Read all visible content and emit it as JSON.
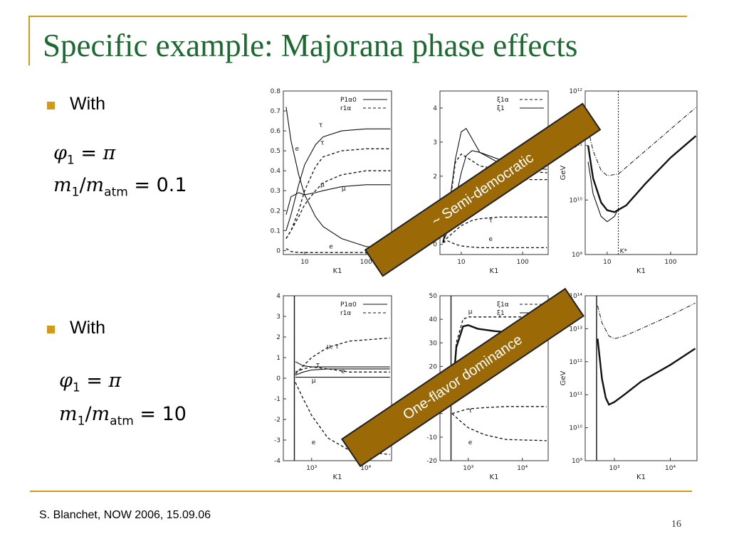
{
  "slide": {
    "title": "Specific example: Majorana phase effects",
    "bullets": [
      {
        "label": "With",
        "eq_lhs1": "1",
        "eq_rhs1": "π",
        "eq_ratio_sub": "atm",
        "eq_value": "0.1"
      },
      {
        "label": "With",
        "eq_lhs1": "1",
        "eq_rhs1": "π",
        "eq_ratio_sub": "atm",
        "eq_value": "10"
      }
    ],
    "eq_symbols": {
      "phi": "φ",
      "m": "m",
      "slash": "/",
      "equals": "="
    },
    "footer": "S. Blanchet, NOW 2006, 15.09.06",
    "page_number": "16",
    "banners": [
      "~ Semi-democratic",
      "One-flavor dominance"
    ],
    "accent_color": "#d19a1c",
    "title_color": "#1c6a32",
    "banner_color": "#9b6a06"
  },
  "chart_data": [
    {
      "type": "line",
      "xlabel": "K1",
      "xscale": "log",
      "xlim": [
        4.5,
        260
      ],
      "ylim": [
        -0.02,
        0.8
      ],
      "xticks": [
        {
          "v": 10,
          "l": "10"
        },
        {
          "v": 100,
          "l": "100"
        }
      ],
      "yticks": [
        {
          "v": 0,
          "l": "0"
        },
        {
          "v": 0.1,
          "l": "0.1"
        },
        {
          "v": 0.2,
          "l": "0.2"
        },
        {
          "v": 0.3,
          "l": "0.3"
        },
        {
          "v": 0.4,
          "l": "0.4"
        },
        {
          "v": 0.5,
          "l": "0.5"
        },
        {
          "v": 0.6,
          "l": "0.6"
        },
        {
          "v": 0.7,
          "l": "0.7"
        },
        {
          "v": 0.8,
          "l": "0.8"
        }
      ],
      "legend": [
        "P1α0",
        "r1α"
      ],
      "series": [
        {
          "style": "solid",
          "x": [
            5,
            6,
            8,
            10,
            15,
            20,
            40,
            100,
            250
          ],
          "y": [
            0.72,
            0.55,
            0.38,
            0.28,
            0.17,
            0.12,
            0.06,
            0.02,
            0.01
          ]
        },
        {
          "style": "solid",
          "x": [
            5,
            6,
            8,
            10,
            15,
            20,
            40,
            100,
            250
          ],
          "y": [
            0.1,
            0.18,
            0.33,
            0.43,
            0.53,
            0.57,
            0.6,
            0.61,
            0.61
          ]
        },
        {
          "style": "solid",
          "x": [
            5,
            6,
            8,
            10,
            15,
            20,
            40,
            100,
            250
          ],
          "y": [
            0.18,
            0.27,
            0.29,
            0.28,
            0.29,
            0.3,
            0.32,
            0.33,
            0.33
          ]
        },
        {
          "style": "dashed",
          "x": [
            5,
            6,
            8,
            10,
            15,
            20,
            40,
            100,
            250
          ],
          "y": [
            0.06,
            0.1,
            0.2,
            0.3,
            0.42,
            0.47,
            0.5,
            0.51,
            0.51
          ]
        },
        {
          "style": "dashed",
          "x": [
            5,
            6,
            8,
            10,
            15,
            20,
            40,
            100,
            250
          ],
          "y": [
            0.06,
            0.1,
            0.17,
            0.23,
            0.3,
            0.34,
            0.38,
            0.4,
            0.4
          ]
        },
        {
          "style": "dashed",
          "x": [
            5,
            6,
            8,
            10,
            15,
            20,
            40,
            100,
            250
          ],
          "y": [
            0.01,
            -0.005,
            -0.01,
            -0.01,
            -0.01,
            -0.01,
            -0.01,
            -0.01,
            -0.01
          ]
        }
      ],
      "annotations": [
        {
          "t": "e",
          "x": 7,
          "y": 0.5
        },
        {
          "t": "τ",
          "x": 17,
          "y": 0.62
        },
        {
          "t": "τ",
          "x": 18,
          "y": 0.53
        },
        {
          "t": "μ",
          "x": 18,
          "y": 0.32
        },
        {
          "t": "μ",
          "x": 40,
          "y": 0.3
        },
        {
          "t": "e",
          "x": 25,
          "y": 0.01
        }
      ]
    },
    {
      "type": "line",
      "xlabel": "K1",
      "xscale": "log",
      "xlim": [
        4.5,
        260
      ],
      "ylim": [
        -0.3,
        4.5
      ],
      "xticks": [
        {
          "v": 10,
          "l": "10"
        },
        {
          "v": 100,
          "l": "100"
        }
      ],
      "yticks": [
        {
          "v": 0,
          "l": "0"
        },
        {
          "v": 1,
          "l": "1"
        },
        {
          "v": 2,
          "l": "2"
        },
        {
          "v": 3,
          "l": "3"
        },
        {
          "v": 4,
          "l": "4"
        }
      ],
      "legend": [
        "ξ1α",
        "ξ1"
      ],
      "series": [
        {
          "style": "solid",
          "x": [
            5,
            6,
            8,
            10,
            12,
            15,
            20,
            40,
            100,
            250
          ],
          "y": [
            0.05,
            0.8,
            2.5,
            3.3,
            3.4,
            3.1,
            2.7,
            2.4,
            2.25,
            2.2
          ]
        },
        {
          "style": "solid",
          "x": [
            5,
            6,
            8,
            10,
            12,
            15,
            20,
            40,
            100,
            250
          ],
          "y": [
            0.05,
            0.4,
            1.3,
            2.1,
            2.6,
            2.75,
            2.7,
            2.5,
            2.45,
            2.4
          ]
        },
        {
          "style": "dashed",
          "x": [
            5,
            6,
            8,
            10,
            15,
            20,
            40,
            100,
            250
          ],
          "y": [
            0.05,
            0.7,
            2.4,
            2.65,
            2.45,
            2.3,
            2.2,
            2.15,
            2.1
          ]
        },
        {
          "style": "dashed",
          "x": [
            5,
            6,
            8,
            10,
            15,
            20,
            40,
            100,
            250
          ],
          "y": [
            0.05,
            0.4,
            1.0,
            1.2,
            1.55,
            1.7,
            1.85,
            1.9,
            1.9
          ]
        },
        {
          "style": "dashed",
          "x": [
            5,
            6,
            8,
            10,
            15,
            20,
            40,
            100,
            250
          ],
          "y": [
            0.05,
            0.2,
            0.4,
            0.55,
            0.7,
            0.75,
            0.8,
            0.8,
            0.8
          ]
        },
        {
          "style": "dashed",
          "x": [
            5,
            6,
            8,
            10,
            15,
            20,
            40,
            100,
            250
          ],
          "y": [
            0.05,
            0.1,
            0.0,
            -0.05,
            -0.08,
            -0.1,
            -0.1,
            -0.1,
            -0.1
          ]
        }
      ],
      "annotations": [
        {
          "t": "τ",
          "x": 28,
          "y": 0.65
        },
        {
          "t": "e",
          "x": 28,
          "y": 0.1
        }
      ]
    },
    {
      "type": "line",
      "xlabel": "K1",
      "ylabel": "GeV",
      "xscale": "log",
      "yscale": "log",
      "xlim": [
        4.5,
        260
      ],
      "ylim": [
        1000000000.0,
        1000000000000.0
      ],
      "xticks": [
        {
          "v": 10,
          "l": "10"
        },
        {
          "v": 100,
          "l": "100"
        }
      ],
      "yticks": [
        {
          "v": 1000000000.0,
          "l": "10⁹"
        },
        {
          "v": 10000000000.0,
          "l": "10¹⁰"
        },
        {
          "v": 100000000000.0,
          "l": "10¹¹"
        },
        {
          "v": 1000000000000.0,
          "l": "10¹²"
        }
      ],
      "vline": {
        "x": 15,
        "label": "K*"
      },
      "series": [
        {
          "style": "dashdot",
          "x": [
            5,
            6,
            8,
            10,
            15,
            20,
            40,
            100,
            250
          ],
          "y": [
            200000000000.0,
            80000000000.0,
            35000000000.0,
            28000000000.0,
            30000000000.0,
            40000000000.0,
            80000000000.0,
            200000000000.0,
            500000000000.0
          ]
        },
        {
          "style": "thick",
          "x": [
            5,
            6,
            8,
            10,
            13,
            20,
            40,
            100,
            250
          ],
          "y": [
            100000000000.0,
            25000000000.0,
            9000000000.0,
            6500000000.0,
            6000000000.0,
            8000000000.0,
            20000000000.0,
            60000000000.0,
            150000000000.0
          ]
        },
        {
          "style": "solid",
          "x": [
            5,
            6,
            8,
            10,
            13,
            15
          ],
          "y": [
            50000000000.0,
            13000000000.0,
            5000000000.0,
            4000000000.0,
            5000000000.0,
            7000000000.0
          ]
        }
      ],
      "annotations": []
    },
    {
      "type": "line",
      "xlabel": "K1",
      "xscale": "log",
      "xlim": [
        300,
        30000
      ],
      "ylim": [
        -4,
        4
      ],
      "xticks": [
        {
          "v": 1000,
          "l": "10³"
        },
        {
          "v": 10000,
          "l": "10⁴"
        }
      ],
      "yticks": [
        {
          "v": -4,
          "l": "-4"
        },
        {
          "v": -3,
          "l": "-3"
        },
        {
          "v": -2,
          "l": "-2"
        },
        {
          "v": -1,
          "l": "-1"
        },
        {
          "v": 0,
          "l": "0"
        },
        {
          "v": 1,
          "l": "1"
        },
        {
          "v": 2,
          "l": "2"
        },
        {
          "v": 3,
          "l": "3"
        },
        {
          "v": 4,
          "l": "4"
        }
      ],
      "legend": [
        "P1α0",
        "r1α"
      ],
      "vline": {
        "x": 480,
        "label": ""
      },
      "series": [
        {
          "style": "solid",
          "x": [
            500,
            700,
            1000,
            2000,
            5000,
            28000
          ],
          "y": [
            0.8,
            0.6,
            0.55,
            0.55,
            0.55,
            0.55
          ]
        },
        {
          "style": "solid",
          "x": [
            500,
            700,
            1000,
            2000,
            5000,
            28000
          ],
          "y": [
            0.15,
            0.3,
            0.4,
            0.45,
            0.45,
            0.45
          ]
        },
        {
          "style": "solid",
          "x": [
            500,
            700,
            1000,
            2000,
            5000,
            28000
          ],
          "y": [
            0.05,
            0.05,
            0.05,
            0.05,
            0.05,
            0.05
          ]
        },
        {
          "style": "dashed",
          "x": [
            500,
            700,
            1000,
            2000,
            5000,
            28000
          ],
          "y": [
            0.2,
            0.6,
            1.0,
            1.5,
            1.8,
            1.95
          ]
        },
        {
          "style": "dashed",
          "x": [
            500,
            700,
            1000,
            2000,
            5000,
            28000
          ],
          "y": [
            0.3,
            0.45,
            0.55,
            0.45,
            0.3,
            0.3
          ]
        },
        {
          "style": "dashed",
          "x": [
            500,
            700,
            1000,
            2000,
            5000,
            28000
          ],
          "y": [
            -0.2,
            -1.0,
            -1.8,
            -2.9,
            -3.5,
            -3.7
          ]
        }
      ],
      "annotations": [
        {
          "t": "μ, τ",
          "x": 1900,
          "y": 1.45
        },
        {
          "t": "τ",
          "x": 1200,
          "y": 0.55
        },
        {
          "t": "e",
          "x": 3500,
          "y": 0.25
        },
        {
          "t": "μ",
          "x": 1000,
          "y": -0.2
        },
        {
          "t": "e",
          "x": 1000,
          "y": -3.2
        }
      ]
    },
    {
      "type": "line",
      "xlabel": "K1",
      "xscale": "log",
      "xlim": [
        300,
        30000
      ],
      "ylim": [
        -20,
        50
      ],
      "xticks": [
        {
          "v": 1000,
          "l": "10³"
        },
        {
          "v": 10000,
          "l": "10⁴"
        }
      ],
      "yticks": [
        {
          "v": -20,
          "l": "-20"
        },
        {
          "v": -10,
          "l": "-10"
        },
        {
          "v": 0,
          "l": "0"
        },
        {
          "v": 10,
          "l": "10"
        },
        {
          "v": 20,
          "l": "20"
        },
        {
          "v": 30,
          "l": "30"
        },
        {
          "v": 40,
          "l": "40"
        },
        {
          "v": 50,
          "l": "50"
        }
      ],
      "legend": [
        "ξ1α",
        "ξ1"
      ],
      "vline": {
        "x": 480,
        "label": ""
      },
      "series": [
        {
          "style": "dashed",
          "x": [
            500,
            600,
            800,
            1000,
            2000,
            5000,
            28000
          ],
          "y": [
            5,
            30,
            40,
            41,
            41,
            41,
            41
          ]
        },
        {
          "style": "thick",
          "x": [
            500,
            600,
            800,
            1000,
            1500,
            3000,
            10000,
            28000
          ],
          "y": [
            5,
            28,
            37,
            37.5,
            36,
            35,
            34,
            34
          ]
        },
        {
          "style": "dashed",
          "x": [
            500,
            700,
            1000,
            2000,
            5000,
            28000
          ],
          "y": [
            0,
            1,
            2,
            2.5,
            3,
            3
          ]
        },
        {
          "style": "dashed",
          "x": [
            500,
            700,
            1000,
            2000,
            5000,
            28000
          ],
          "y": [
            0,
            -3,
            -6,
            -9,
            -11,
            -11.5
          ]
        }
      ],
      "annotations": [
        {
          "t": "μ",
          "x": 1000,
          "y": 42.5
        },
        {
          "t": "τ",
          "x": 1000,
          "y": 0.5
        },
        {
          "t": "e",
          "x": 1000,
          "y": -13
        }
      ]
    },
    {
      "type": "line",
      "xlabel": "K1",
      "ylabel": "GeV",
      "xscale": "log",
      "yscale": "log",
      "xlim": [
        300,
        30000
      ],
      "ylim": [
        1000000000.0,
        100000000000000.0
      ],
      "xticks": [
        {
          "v": 1000,
          "l": "10³"
        },
        {
          "v": 10000,
          "l": "10⁴"
        }
      ],
      "yticks": [
        {
          "v": 1000000000.0,
          "l": "10⁹"
        },
        {
          "v": 10000000000.0,
          "l": "10¹⁰"
        },
        {
          "v": 100000000000.0,
          "l": "10¹¹"
        },
        {
          "v": 1000000000000.0,
          "l": "10¹²"
        },
        {
          "v": 10000000000000.0,
          "l": "10¹³"
        },
        {
          "v": 100000000000000.0,
          "l": "10¹⁴"
        }
      ],
      "vline": {
        "x": 480,
        "label": ""
      },
      "series": [
        {
          "style": "dashdot",
          "x": [
            500,
            600,
            800,
            1000,
            1500,
            3000,
            10000,
            28000
          ],
          "y": [
            50000000000000.0,
            15000000000000.0,
            6000000000000.0,
            5000000000000.0,
            6000000000000.0,
            10000000000000.0,
            25000000000000.0,
            60000000000000.0
          ]
        },
        {
          "style": "thick",
          "x": [
            500,
            600,
            700,
            800,
            1000,
            1500,
            3000,
            10000,
            28000
          ],
          "y": [
            5000000000000.0,
            300000000000.0,
            80000000000.0,
            50000000000.0,
            60000000000.0,
            100000000000.0,
            250000000000.0,
            800000000000.0,
            2500000000000.0
          ]
        }
      ],
      "annotations": []
    }
  ]
}
